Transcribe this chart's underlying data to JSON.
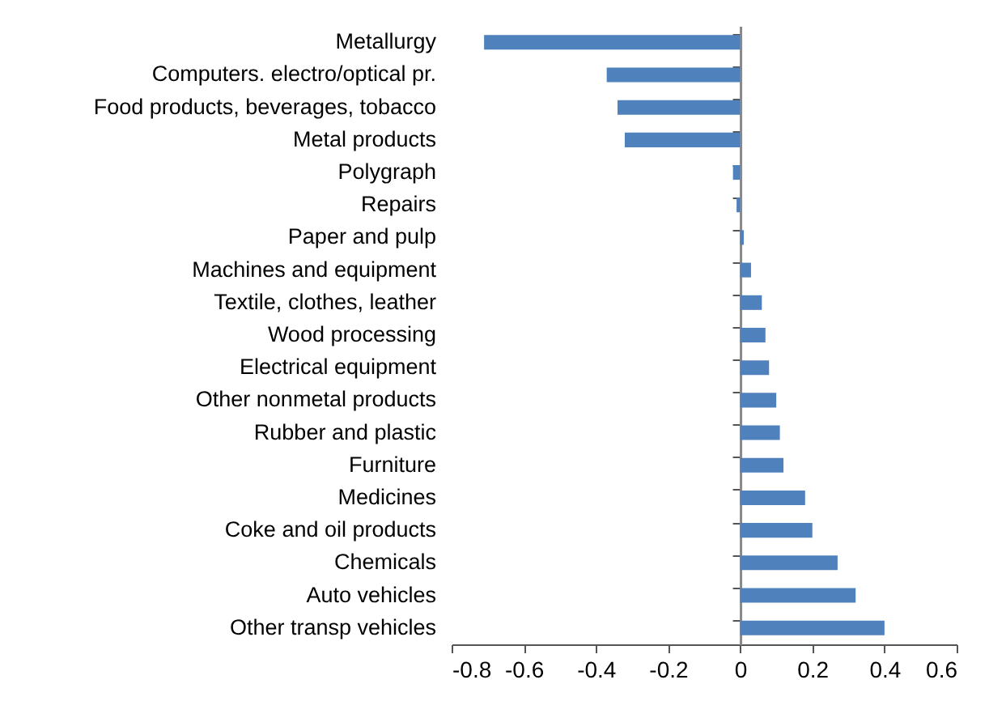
{
  "chart_data": {
    "type": "bar",
    "orientation": "horizontal",
    "categories": [
      "Metallurgy",
      "Computers. electro/optical pr.",
      "Food products, beverages, tobacco",
      "Metal products",
      "Polygraph ",
      "Repairs",
      "Paper and pulp",
      "Machines and equipment",
      "Textile, clothes, leather",
      "Wood processing",
      "Electrical equipment",
      "Other nonmetal products",
      "Rubber and plastic ",
      "Furniture",
      "Medicines",
      "Coke and oil products ",
      "Chemicals",
      "Auto vehicles",
      "Other transp vehicles"
    ],
    "values": [
      -0.71,
      -0.37,
      -0.34,
      -0.32,
      -0.02,
      -0.01,
      0.01,
      0.03,
      0.06,
      0.07,
      0.08,
      0.1,
      0.11,
      0.12,
      0.18,
      0.2,
      0.27,
      0.32,
      0.4
    ],
    "color": "#4f81bd",
    "xlim": [
      -0.8,
      0.6
    ],
    "xticks": [
      -0.8,
      -0.6,
      -0.4,
      -0.2,
      0,
      0.2,
      0.4,
      0.6
    ]
  }
}
